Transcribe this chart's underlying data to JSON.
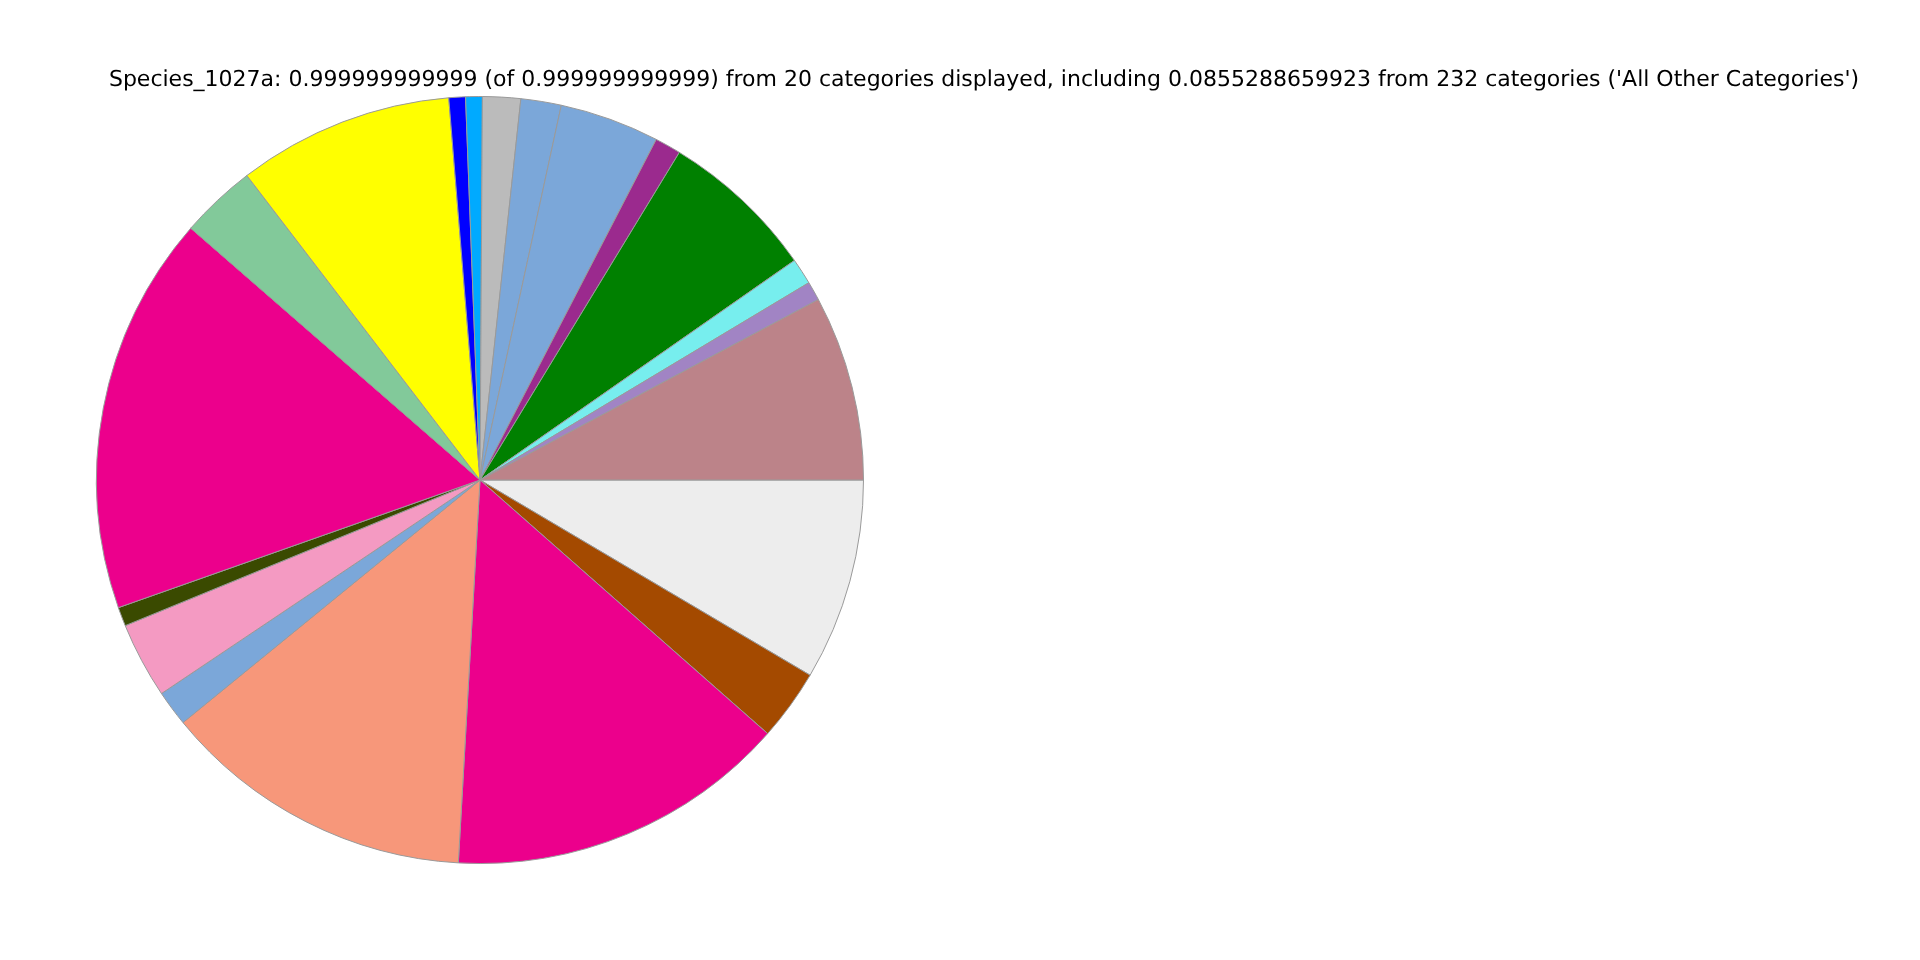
{
  "chart_data": {
    "type": "pie",
    "title": "Species_1027a: 0.999999999999 (of 0.999999999999) from 20 categories displayed, including 0.0855288659923 from 232 categories ('All Other Categories')",
    "categories": [
      null,
      null,
      null,
      null,
      null,
      null,
      null,
      null,
      null,
      null,
      null,
      null,
      null,
      null,
      null,
      null,
      null,
      null,
      null,
      null
    ],
    "values": [
      7.8,
      0.8,
      1.1,
      6.6,
      1.1,
      4.2,
      1.7,
      1.6,
      0.7,
      0.7,
      9.1,
      3.2,
      16.8,
      0.8,
      3.2,
      1.5,
      13.2,
      14.4,
      3.0,
      8.5
    ],
    "colors": [
      "#bc8389",
      "#a184c4",
      "#77eeee",
      "#008000",
      "#9b2a8e",
      "#7ba7d9",
      "#7ba7d9",
      "#bbbbbb",
      "#00aaff",
      "#0000ff",
      "#ffff00",
      "#82c99a",
      "#ec008c",
      "#3a4a00",
      "#f49ac2",
      "#7ba7d9",
      "#f7977a",
      "#ec008c",
      "#a44a00",
      "#ededed"
    ],
    "legend": false
  }
}
